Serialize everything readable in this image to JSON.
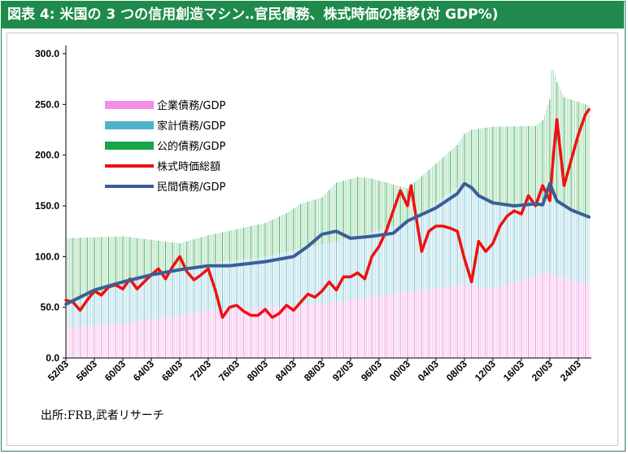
{
  "title": "図表 4: 米国の 3 つの信用創造マシン‥官民債務、株式時価の推移(対 GDP%)",
  "source": "出所:FRB,武者リサーチ",
  "chart_data": {
    "type": "area",
    "title": "米国の 3 つの信用創造マシン‥官民債務、株式時価の推移(対 GDP%)",
    "xlabel": "",
    "ylabel": "",
    "ylim": [
      0,
      300
    ],
    "yticks": [
      "0.0",
      "50.0",
      "100.0",
      "150.0",
      "200.0",
      "250.0",
      "300.0"
    ],
    "x_start_year": 1952,
    "x_end_year": 2025.5,
    "x_tick_labels": [
      "52/03",
      "56/03",
      "60/03",
      "64/03",
      "68/03",
      "72/03",
      "76/03",
      "80/03",
      "84/03",
      "88/03",
      "92/03",
      "96/03",
      "00/03",
      "04/03",
      "08/03",
      "12/03",
      "16/03",
      "20/03",
      "24/03"
    ],
    "legend": [
      {
        "name": "企業債務/GDP",
        "color": "#f08ee8"
      },
      {
        "name": "家計債務/GDP",
        "color": "#4fb3c8"
      },
      {
        "name": "公的債務/GDP",
        "color": "#18a548"
      },
      {
        "name": "株式時価総額",
        "color": "#ee1111"
      },
      {
        "name": "民間債務/GDP",
        "color": "#3a5f96"
      }
    ],
    "series": [
      {
        "name": "企業債務/GDP",
        "kind": "stacked-area",
        "x": [
          1952,
          1960,
          1968,
          1972,
          1980,
          1985,
          1990,
          2000,
          2008,
          2012,
          2020,
          2021,
          2025.5
        ],
        "y": [
          30,
          34,
          42,
          47,
          50,
          52,
          55,
          65,
          72,
          68,
          85,
          80,
          73
        ]
      },
      {
        "name": "家計債務/GDP",
        "kind": "stacked-area",
        "x": [
          1952,
          1960,
          1968,
          1972,
          1980,
          1985,
          1990,
          2000,
          2007,
          2008,
          2012,
          2020,
          2021,
          2025.5
        ],
        "y": [
          22,
          38,
          45,
          46,
          50,
          56,
          60,
          68,
          97,
          98,
          82,
          70,
          72,
          66
        ]
      },
      {
        "name": "公的債務/GDP",
        "kind": "stacked-area",
        "x": [
          1952,
          1960,
          1968,
          1972,
          1980,
          1983,
          1985,
          1988,
          1990,
          1993,
          1995,
          2000,
          2007,
          2009,
          2012,
          2018,
          2019,
          2020,
          2020.3,
          2021,
          2022,
          2025.5
        ],
        "y": [
          66,
          48,
          26,
          28,
          33,
          38,
          44,
          46,
          58,
          58,
          53,
          34,
          42,
          60,
          78,
          75,
          80,
          100,
          135,
          120,
          108,
          110
        ]
      },
      {
        "name": "株式時価総額",
        "kind": "line",
        "x": [
          1952,
          1953,
          1954,
          1955,
          1956,
          1957,
          1958,
          1959,
          1960,
          1961,
          1962,
          1963,
          1964,
          1965,
          1966,
          1967,
          1968,
          1969,
          1970,
          1971,
          1972,
          1973,
          1974,
          1975,
          1976,
          1977,
          1978,
          1979,
          1980,
          1981,
          1982,
          1983,
          1984,
          1985,
          1986,
          1987,
          1988,
          1989,
          1990,
          1991,
          1992,
          1993,
          1994,
          1995,
          1996,
          1997,
          1998,
          1999,
          2000,
          2000.5,
          2001,
          2002,
          2003,
          2004,
          2005,
          2006,
          2007,
          2008,
          2009,
          2010,
          2011,
          2012,
          2013,
          2014,
          2015,
          2016,
          2017,
          2018,
          2019,
          2020,
          2020.5,
          2021,
          2022,
          2023,
          2024,
          2025,
          2025.5
        ],
        "y": [
          57,
          55,
          47,
          57,
          66,
          62,
          70,
          72,
          68,
          78,
          68,
          75,
          82,
          88,
          78,
          90,
          100,
          85,
          77,
          82,
          88,
          67,
          40,
          50,
          52,
          46,
          42,
          42,
          48,
          40,
          44,
          52,
          47,
          55,
          63,
          60,
          66,
          75,
          67,
          80,
          80,
          84,
          78,
          100,
          110,
          125,
          145,
          165,
          150,
          170,
          148,
          105,
          125,
          130,
          130,
          128,
          125,
          98,
          75,
          115,
          105,
          113,
          130,
          140,
          145,
          142,
          160,
          150,
          170,
          155,
          200,
          235,
          170,
          195,
          220,
          240,
          245
        ]
      },
      {
        "name": "民間債務/GDP",
        "kind": "line",
        "x": [
          1952,
          1956,
          1960,
          1964,
          1968,
          1972,
          1975,
          1980,
          1984,
          1986,
          1988,
          1990,
          1992,
          1995,
          1998,
          2000,
          2004,
          2007,
          2008,
          2009,
          2010,
          2012,
          2015,
          2018,
          2019,
          2020,
          2021,
          2023,
          2025.5
        ],
        "y": [
          53,
          67,
          75,
          82,
          87,
          91,
          91,
          95,
          100,
          110,
          122,
          125,
          118,
          120,
          123,
          135,
          148,
          162,
          172,
          168,
          160,
          153,
          150,
          152,
          151,
          172,
          155,
          146,
          139
        ]
      }
    ]
  }
}
